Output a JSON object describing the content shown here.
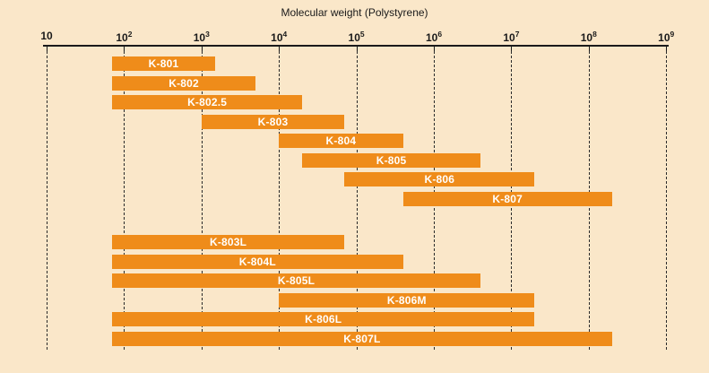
{
  "colors": {
    "background": "#FAE7C9",
    "bar": "#EF8C1A",
    "bar_label": "#FFFFFF",
    "axis": "#1A1A1A"
  },
  "chart_data": {
    "type": "bar",
    "orientation": "horizontal-range",
    "title": "Molecular weight (Polystyrene)",
    "x_scale": "log",
    "xlim": [
      10,
      1000000000
    ],
    "x_tick_exponents": [
      1,
      2,
      3,
      4,
      5,
      6,
      7,
      8,
      9
    ],
    "x_tick_labels": [
      "10",
      "10^2",
      "10^3",
      "10^4",
      "10^5",
      "10^6",
      "10^7",
      "10^8",
      "10^9"
    ],
    "grid": "dashed-vertical-gridlines",
    "legend": "none",
    "bars": [
      {
        "label": "K-801",
        "min": 70,
        "max": 1500,
        "section": 1
      },
      {
        "label": "K-802",
        "min": 70,
        "max": 5000,
        "section": 1
      },
      {
        "label": "K-802.5",
        "min": 70,
        "max": 20000,
        "section": 1
      },
      {
        "label": "K-803",
        "min": 1000,
        "max": 70000,
        "section": 1
      },
      {
        "label": "K-804",
        "min": 10000,
        "max": 400000,
        "section": 1
      },
      {
        "label": "K-805",
        "min": 20000,
        "max": 4000000,
        "section": 1
      },
      {
        "label": "K-806",
        "min": 70000,
        "max": 20000000,
        "section": 1
      },
      {
        "label": "K-807",
        "min": 400000,
        "max": 200000000,
        "section": 1
      },
      {
        "label": "K-803L",
        "min": 70,
        "max": 70000,
        "section": 2
      },
      {
        "label": "K-804L",
        "min": 70,
        "max": 400000,
        "section": 2
      },
      {
        "label": "K-805L",
        "min": 70,
        "max": 4000000,
        "section": 2
      },
      {
        "label": "K-806M",
        "min": 10000,
        "max": 20000000,
        "section": 2
      },
      {
        "label": "K-806L",
        "min": 70,
        "max": 20000000,
        "section": 2
      },
      {
        "label": "K-807L",
        "min": 70,
        "max": 200000000,
        "section": 2
      }
    ]
  }
}
